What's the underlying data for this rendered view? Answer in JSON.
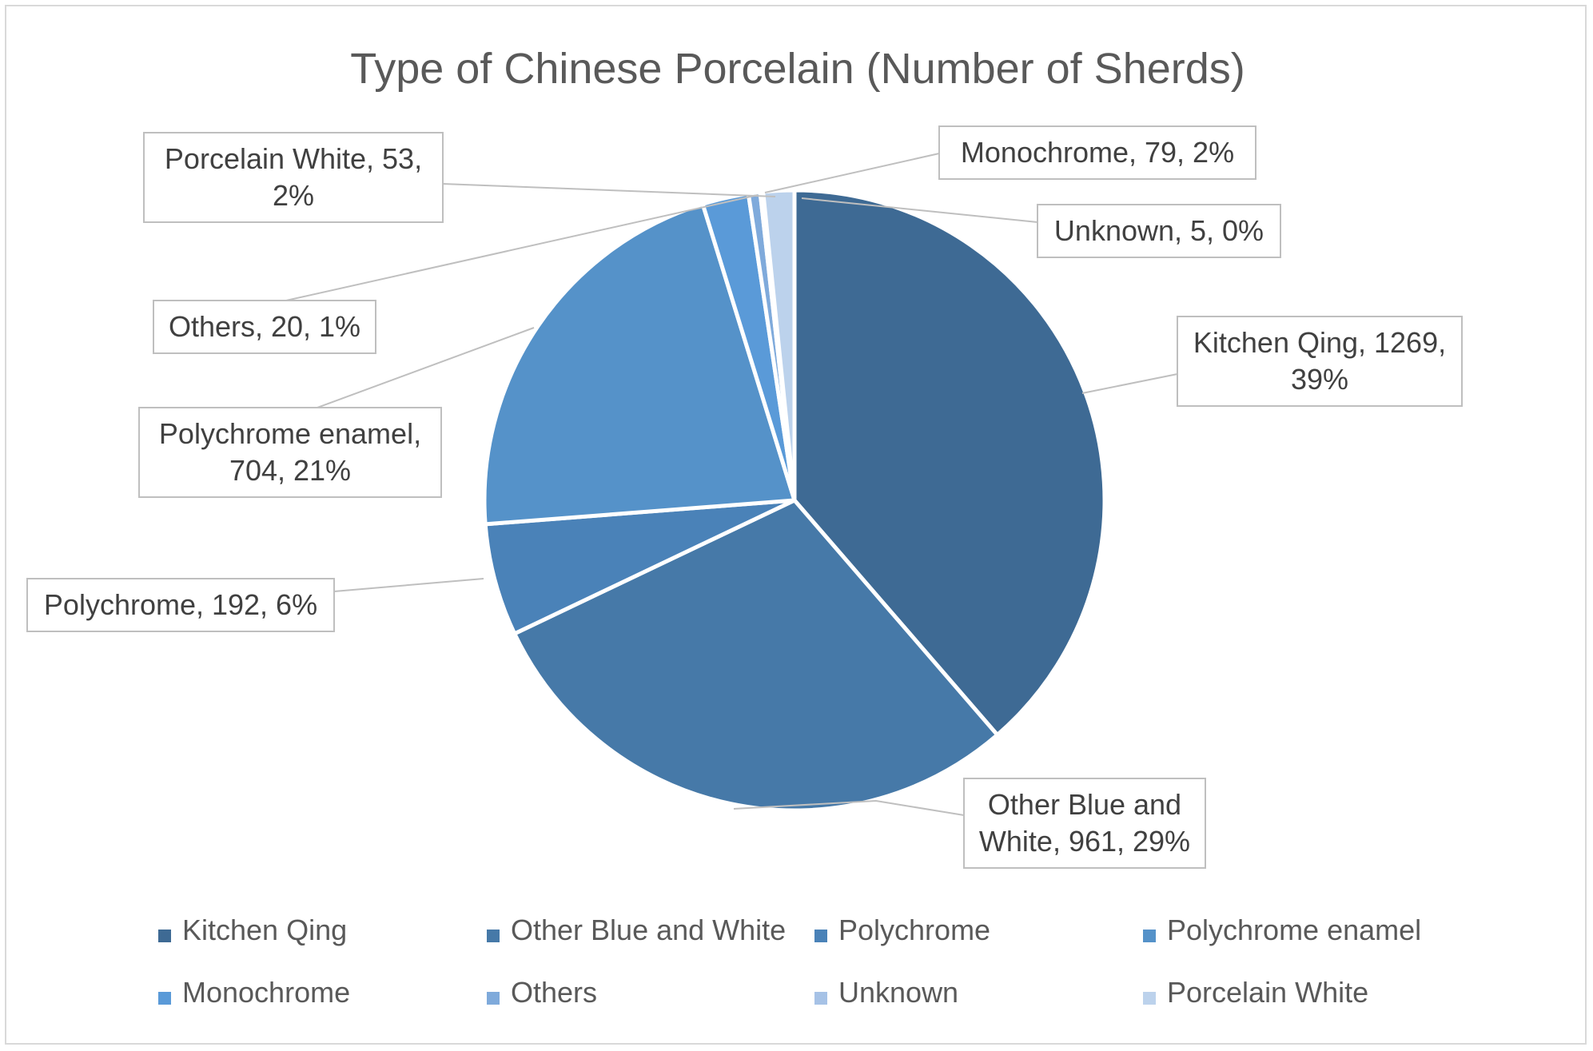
{
  "chart_data": {
    "type": "pie",
    "title": "Type of Chinese Porcelain (Number of Sherds)",
    "slices": [
      {
        "label": "Kitchen Qing",
        "value": 1269,
        "percent": "39%",
        "color": "#3e6a94",
        "callout": [
          "Kitchen Qing, 1269,",
          "39%"
        ]
      },
      {
        "label": "Other Blue and White",
        "value": 961,
        "percent": "29%",
        "color": "#4679a8",
        "callout": [
          "Other Blue and",
          "White, 961, 29%"
        ]
      },
      {
        "label": "Polychrome",
        "value": 192,
        "percent": "6%",
        "color": "#4a82b8",
        "callout": [
          "Polychrome, 192, 6%"
        ]
      },
      {
        "label": "Polychrome enamel",
        "value": 704,
        "percent": "21%",
        "color": "#5592c9",
        "callout": [
          "Polychrome enamel,",
          "704, 21%"
        ]
      },
      {
        "label": "Monochrome",
        "value": 79,
        "percent": "2%",
        "color": "#5a9ad8",
        "callout": [
          "Monochrome, 79, 2%"
        ]
      },
      {
        "label": "Others",
        "value": 20,
        "percent": "1%",
        "color": "#7faadb",
        "callout": [
          "Others, 20, 1%"
        ]
      },
      {
        "label": "Unknown",
        "value": 5,
        "percent": "0%",
        "color": "#a6c2e6",
        "callout": [
          "Unknown, 5, 0%"
        ]
      },
      {
        "label": "Porcelain White",
        "value": 53,
        "percent": "2%",
        "color": "#bcd2ec",
        "callout": [
          "Porcelain White, 53,",
          "2%"
        ]
      }
    ],
    "legend_position": "bottom"
  }
}
